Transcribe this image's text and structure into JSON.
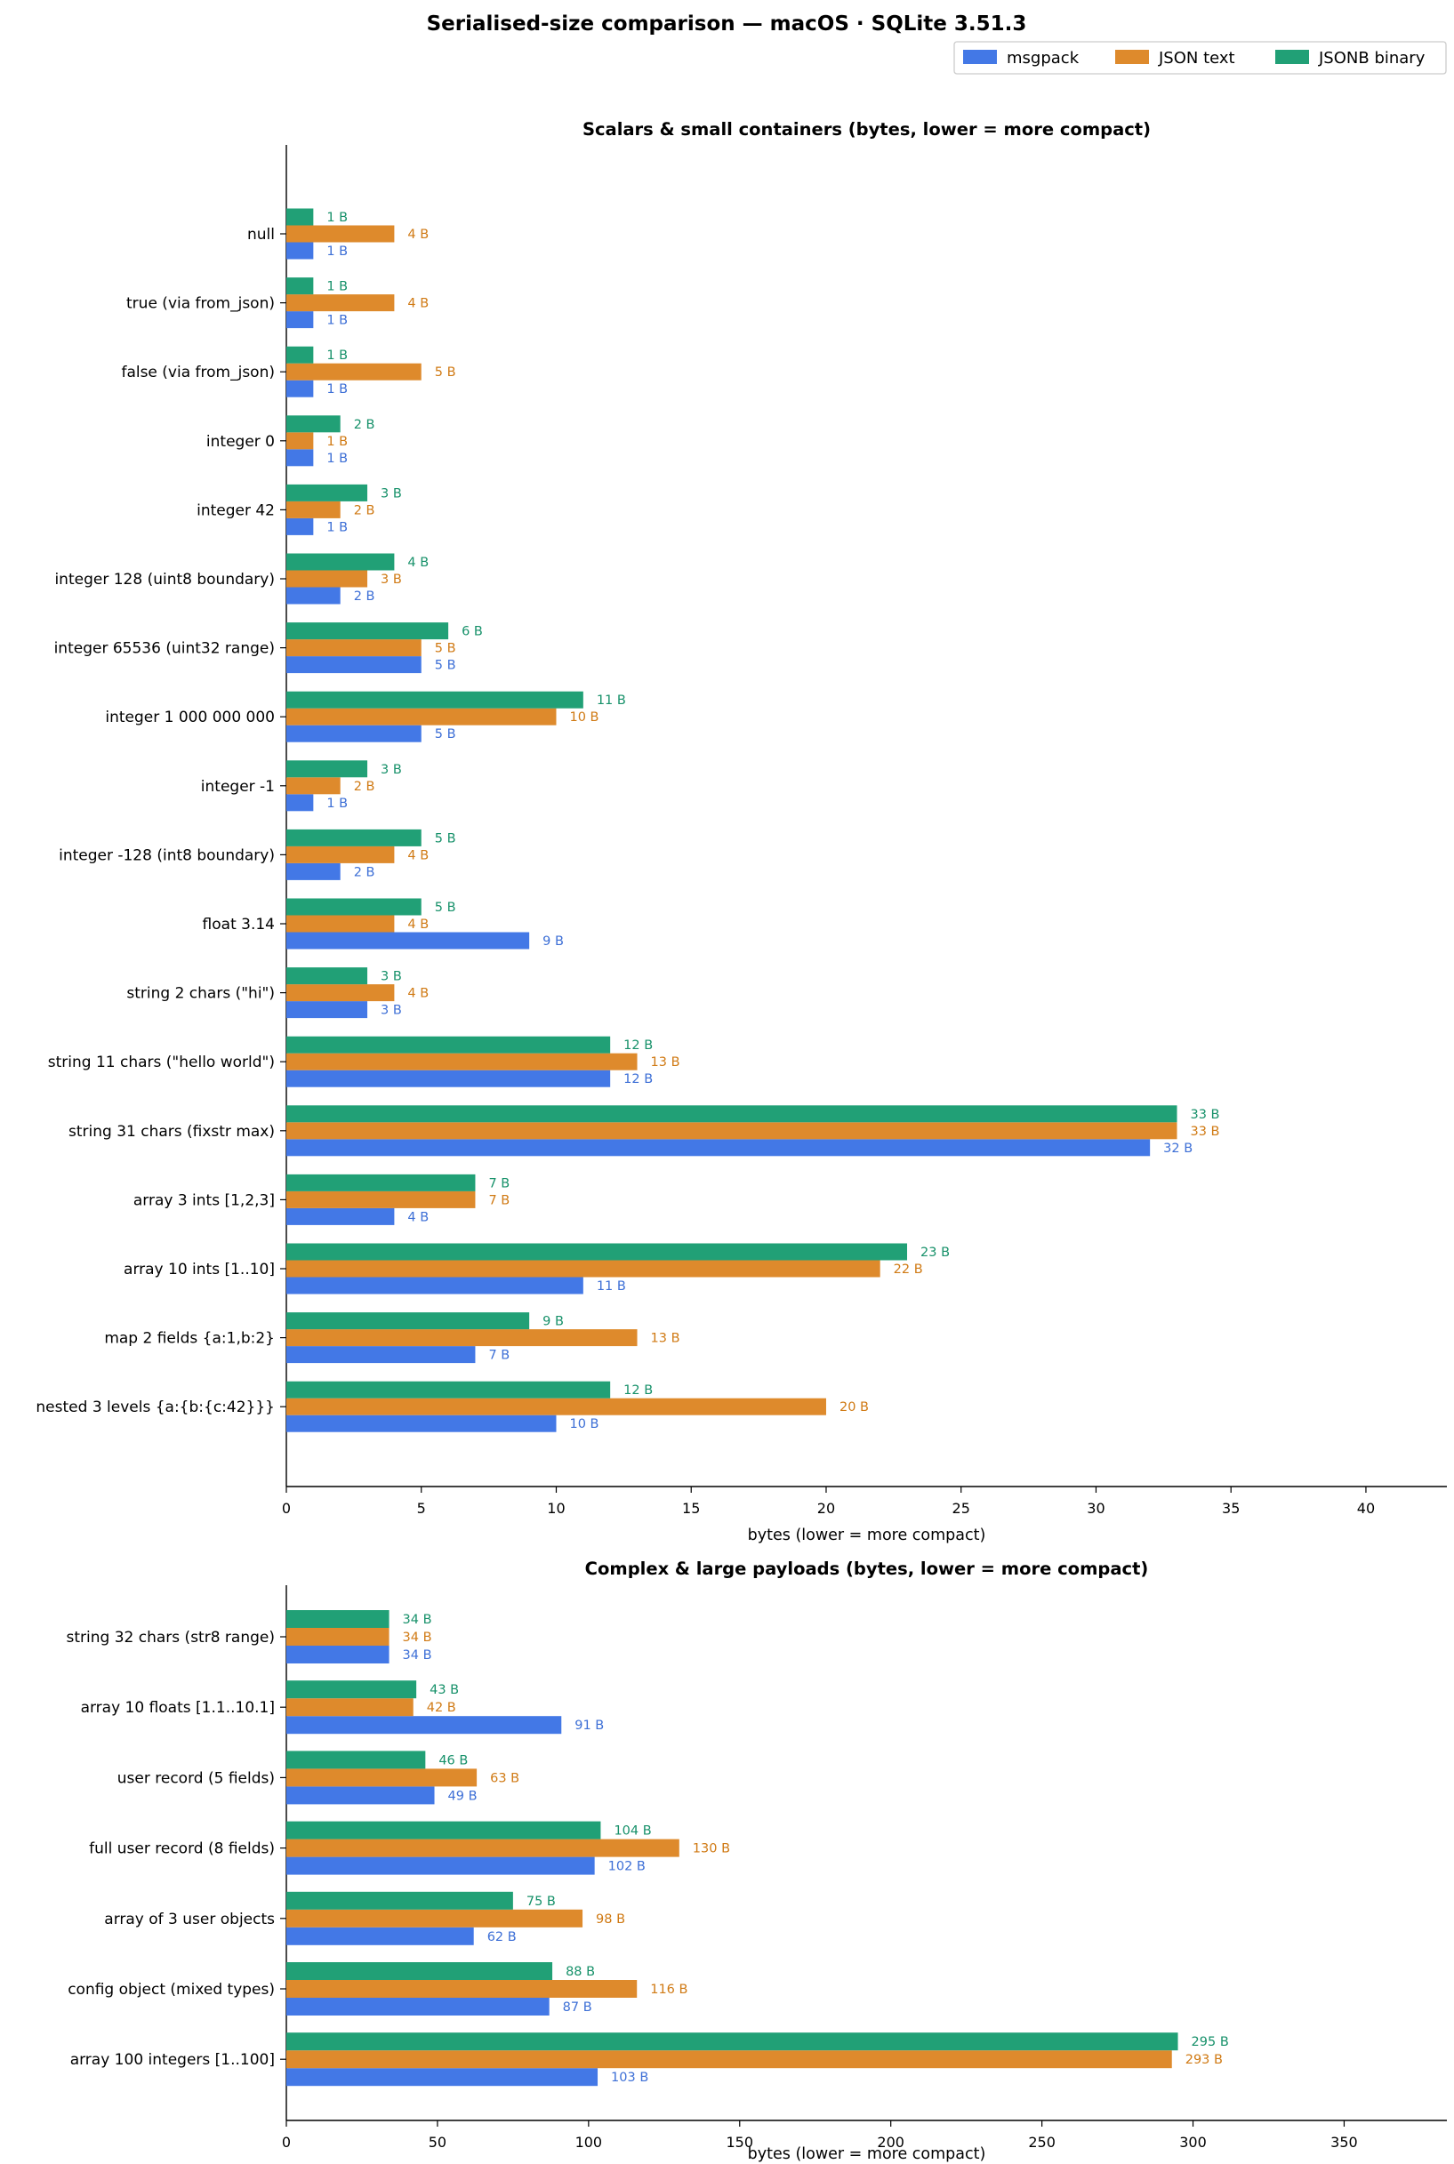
{
  "title": "Serialised-size comparison — macOS · SQLite 3.51.3",
  "colors": {
    "msgpack": "#4378e6",
    "json": "#de8a2c",
    "jsonb": "#21a076",
    "msgpack_label": "#3d6fd6",
    "json_label": "#d07a14",
    "jsonb_label": "#17916a"
  },
  "legend": {
    "placement": "top-right",
    "items": [
      {
        "key": "msgpack",
        "label": "msgpack"
      },
      {
        "key": "json",
        "label": "JSON text"
      },
      {
        "key": "jsonb",
        "label": "JSONB binary"
      }
    ]
  },
  "chart_data": [
    {
      "type": "bar",
      "orientation": "horizontal",
      "title": "Scalars & small containers  (bytes, lower = more compact)",
      "xlabel": "bytes (lower = more compact)",
      "xlim": [
        0,
        43
      ],
      "xticks": [
        0,
        5,
        10,
        15,
        20,
        25,
        30,
        35,
        40
      ],
      "grid": false,
      "unit_suffix": " B",
      "categories": [
        "null",
        "true  (via from_json)",
        "false (via from_json)",
        "integer 0",
        "integer 42",
        "integer 128  (uint8 boundary)",
        "integer 65536  (uint32 range)",
        "integer 1 000 000 000",
        "integer -1",
        "integer -128  (int8 boundary)",
        "float 3.14",
        "string  2 chars  (\"hi\")",
        "string 11 chars  (\"hello world\")",
        "string 31 chars  (fixstr max)",
        "array  3 ints   [1,2,3]",
        "array 10 ints   [1..10]",
        "map  2 fields   {a:1,b:2}",
        "nested  3 levels  {a:{b:{c:42}}}"
      ],
      "series": [
        {
          "name": "msgpack",
          "key": "msgpack",
          "values": [
            1,
            1,
            1,
            1,
            1,
            2,
            5,
            5,
            1,
            2,
            9,
            3,
            12,
            32,
            4,
            11,
            7,
            10
          ]
        },
        {
          "name": "JSON text",
          "key": "json",
          "values": [
            4,
            4,
            5,
            1,
            2,
            3,
            5,
            10,
            2,
            4,
            4,
            4,
            13,
            33,
            7,
            22,
            13,
            20
          ]
        },
        {
          "name": "JSONB binary",
          "key": "jsonb",
          "values": [
            1,
            1,
            1,
            2,
            3,
            4,
            6,
            11,
            3,
            5,
            5,
            3,
            12,
            33,
            7,
            23,
            9,
            12
          ]
        }
      ]
    },
    {
      "type": "bar",
      "orientation": "horizontal",
      "title": "Complex & large payloads  (bytes, lower = more compact)",
      "xlabel": "bytes (lower = more compact)",
      "xlim": [
        0,
        384
      ],
      "xticks": [
        0,
        50,
        100,
        150,
        200,
        250,
        300,
        350
      ],
      "grid": false,
      "unit_suffix": " B",
      "categories": [
        "string 32 chars  (str8 range)",
        "array 10 floats  [1.1..10.1]",
        "user record (5 fields)",
        "full user record (8 fields)",
        "array of 3 user objects",
        "config object (mixed types)",
        "array 100 integers [1..100]"
      ],
      "series": [
        {
          "name": "msgpack",
          "key": "msgpack",
          "values": [
            34,
            91,
            49,
            102,
            62,
            87,
            103
          ]
        },
        {
          "name": "JSON text",
          "key": "json",
          "values": [
            34,
            42,
            63,
            130,
            98,
            116,
            293
          ]
        },
        {
          "name": "JSONB binary",
          "key": "jsonb",
          "values": [
            34,
            43,
            46,
            104,
            75,
            88,
            295
          ]
        }
      ]
    }
  ]
}
